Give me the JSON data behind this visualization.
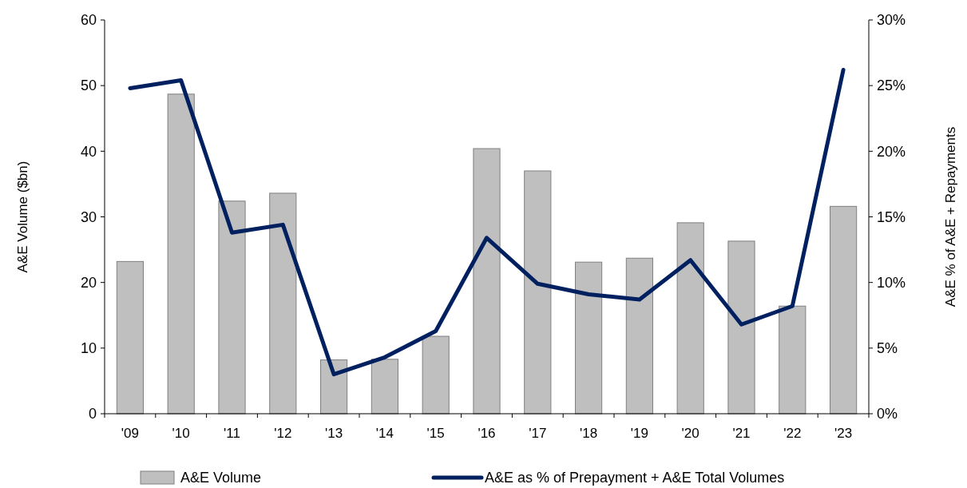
{
  "chart_data": {
    "type": "bar",
    "ylabel": "A&E Volume ($bn)",
    "y2label": "A&E % of A&E + Repayments",
    "categories": [
      "'09",
      "'10",
      "'11",
      "'12",
      "'13",
      "'14",
      "'15",
      "'16",
      "'17",
      "'18",
      "'19",
      "'20",
      "'21",
      "'22",
      "'23"
    ],
    "series": [
      {
        "name": "A&E Volume",
        "color": "#bfbfbf",
        "values": [
          23.2,
          48.7,
          32.4,
          33.6,
          8.2,
          8.3,
          11.8,
          40.4,
          37.0,
          23.1,
          23.7,
          29.1,
          26.3,
          16.4,
          31.6
        ]
      },
      {
        "name": "A&E as % of Prepayment + A&E Total Volumes",
        "type": "line",
        "axis": "y2",
        "color": "#002060",
        "values": [
          24.8,
          25.4,
          13.8,
          14.4,
          3.0,
          4.3,
          6.3,
          13.4,
          9.9,
          9.1,
          8.7,
          11.7,
          6.8,
          8.2,
          26.2
        ]
      }
    ],
    "ylim": [
      0,
      60
    ],
    "yticks": [
      0,
      10,
      20,
      30,
      40,
      50,
      60
    ],
    "y2lim": [
      0,
      30
    ],
    "y2ticks": [
      {
        "value": 0,
        "label": "0%"
      },
      {
        "value": 5,
        "label": "5%"
      },
      {
        "value": 10,
        "label": "10%"
      },
      {
        "value": 15,
        "label": "15%"
      },
      {
        "value": 20,
        "label": "20%"
      },
      {
        "value": 25,
        "label": "25%"
      },
      {
        "value": 30,
        "label": "30%"
      }
    ],
    "legend": "bottom",
    "grid": false,
    "marker": "none",
    "line_style": "solid"
  }
}
